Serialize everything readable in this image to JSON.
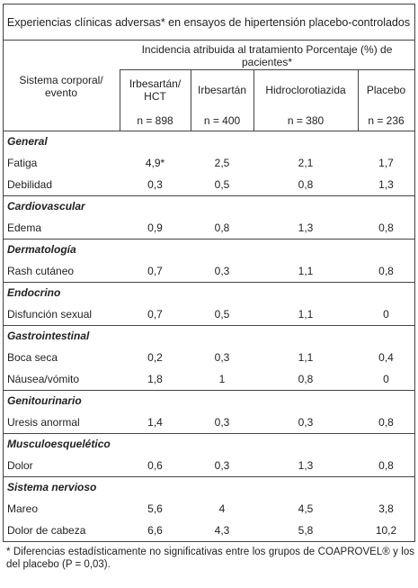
{
  "table": {
    "title": "Experiencias clínicas adversas* en ensayos de hipertensión placebo-controlados",
    "row_header": "Sistema corporal/ evento",
    "group_header": "Incidencia atribuida al tratamiento Porcentaje (%) de pacientes*",
    "columns": [
      {
        "name": "Irbesartán/ HCT",
        "n": "n = 898"
      },
      {
        "name": "Irbesartán",
        "n": "n = 400"
      },
      {
        "name": "Hidroclorotiazida",
        "n": "n = 380"
      },
      {
        "name": "Placebo",
        "n": "n = 236"
      }
    ],
    "sections": [
      {
        "name": "General",
        "rows": [
          [
            "Fatiga",
            "4,9*",
            "2,5",
            "2,1",
            "1,7"
          ],
          [
            "Debilidad",
            "0,3",
            "0,5",
            "0,8",
            "1,3"
          ]
        ]
      },
      {
        "name": "Cardiovascular",
        "rows": [
          [
            "Edema",
            "0,9",
            "0,8",
            "1,3",
            "0,8"
          ]
        ]
      },
      {
        "name": "Dermatología",
        "rows": [
          [
            "Rash cutáneo",
            "0,7",
            "0,3",
            "1,1",
            "0,8"
          ]
        ]
      },
      {
        "name": "Endocrino",
        "rows": [
          [
            "Disfunción sexual",
            "0,7",
            "0,5",
            "1,1",
            "0"
          ]
        ]
      },
      {
        "name": "Gastrointestinal",
        "rows": [
          [
            "Boca seca",
            "0,2",
            "0,3",
            "1,1",
            "0,4"
          ],
          [
            "Náusea/vómito",
            "1,8",
            "1",
            "0,8",
            "0"
          ]
        ]
      },
      {
        "name": "Genitourinario",
        "rows": [
          [
            "Uresis anormal",
            "1,4",
            "0,3",
            "0,3",
            "0,8"
          ]
        ]
      },
      {
        "name": "Musculoesquelético",
        "rows": [
          [
            "Dolor",
            "0,6",
            "0,3",
            "1,3",
            "0,8"
          ]
        ]
      },
      {
        "name": "Sistema nervioso",
        "rows": [
          [
            "Mareo",
            "5,6",
            "4",
            "4,5",
            "3,8"
          ],
          [
            "Dolor de cabeza",
            "6,6",
            "4,3",
            "5,8",
            "10,2"
          ]
        ]
      }
    ]
  },
  "footnote": "*  Diferencias estadísticamente no significativas entre los grupos de COAPROVEL® y los del placebo (P = 0,03)."
}
